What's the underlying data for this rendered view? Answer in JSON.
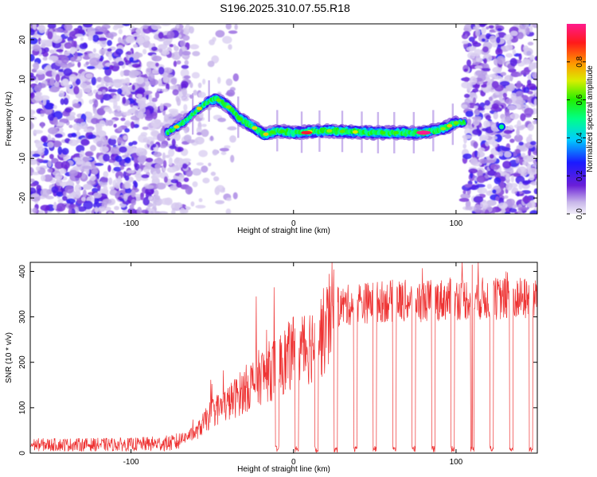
{
  "title": "S196.2025.310.07.55.R18",
  "chart_data": [
    {
      "type": "heatmap",
      "name": "spectrogram",
      "xlabel": "Height of straight line (km)",
      "ylabel": "Frequency (Hz)",
      "xlim": [
        -162,
        150
      ],
      "ylim": [
        -24,
        24
      ],
      "xticks": [
        -100,
        0,
        100
      ],
      "yticks": [
        -20,
        -10,
        0,
        10,
        20
      ],
      "colorbar": {
        "label": "Normalized spectral amplitude",
        "range": [
          0,
          1
        ],
        "ticks": [
          0.0,
          0.2,
          0.4,
          0.6,
          0.8
        ],
        "ticklabels": [
          "0.0",
          "0.2",
          "0.4",
          "0.6",
          "0.8"
        ]
      },
      "ridge_track": [
        {
          "x": -76,
          "y": -3
        },
        {
          "x": -68,
          "y": -1
        },
        {
          "x": -60,
          "y": 2
        },
        {
          "x": -52,
          "y": 4.5
        },
        {
          "x": -47,
          "y": 5
        },
        {
          "x": -40,
          "y": 3
        },
        {
          "x": -33,
          "y": 0
        },
        {
          "x": -25,
          "y": -2
        },
        {
          "x": -18,
          "y": -4
        },
        {
          "x": -10,
          "y": -3
        },
        {
          "x": 0,
          "y": -3.5
        },
        {
          "x": 20,
          "y": -3
        },
        {
          "x": 50,
          "y": -3.5
        },
        {
          "x": 80,
          "y": -3.5
        },
        {
          "x": 92,
          "y": -2.5
        },
        {
          "x": 100,
          "y": -1
        },
        {
          "x": 105,
          "y": -1
        }
      ],
      "peak": {
        "x": 80,
        "y": -3.5,
        "amplitude": 1.0
      }
    },
    {
      "type": "line",
      "name": "snr",
      "xlabel": "Height of straight line (km)",
      "ylabel": "SNR (10 * v/v)",
      "xlim": [
        -162,
        150
      ],
      "ylim": [
        0,
        420
      ],
      "xticks": [
        -100,
        0,
        100
      ],
      "yticks": [
        0,
        100,
        200,
        300,
        400
      ],
      "color": "#ee3333",
      "envelope": [
        {
          "x": -162,
          "y": 15
        },
        {
          "x": -100,
          "y": 16
        },
        {
          "x": -75,
          "y": 22
        },
        {
          "x": -60,
          "y": 45
        },
        {
          "x": -50,
          "y": 90
        },
        {
          "x": -40,
          "y": 110
        },
        {
          "x": -30,
          "y": 140
        },
        {
          "x": -20,
          "y": 170
        },
        {
          "x": -10,
          "y": 190
        },
        {
          "x": 0,
          "y": 220
        },
        {
          "x": 10,
          "y": 240
        },
        {
          "x": 20,
          "y": 270
        },
        {
          "x": 25,
          "y": 320
        },
        {
          "x": 40,
          "y": 330
        },
        {
          "x": 60,
          "y": 335
        },
        {
          "x": 80,
          "y": 335
        },
        {
          "x": 100,
          "y": 340
        },
        {
          "x": 120,
          "y": 340
        },
        {
          "x": 150,
          "y": 340
        }
      ],
      "notable_spikes": [
        {
          "x": -23,
          "y": 345
        },
        {
          "x": -12,
          "y": 365
        },
        {
          "x": 18,
          "y": 255
        },
        {
          "x": 110,
          "y": 415
        }
      ],
      "dropouts_x": [
        -10,
        2,
        14,
        26,
        38,
        50,
        62,
        74,
        86,
        98,
        110,
        122,
        134,
        146
      ]
    }
  ]
}
